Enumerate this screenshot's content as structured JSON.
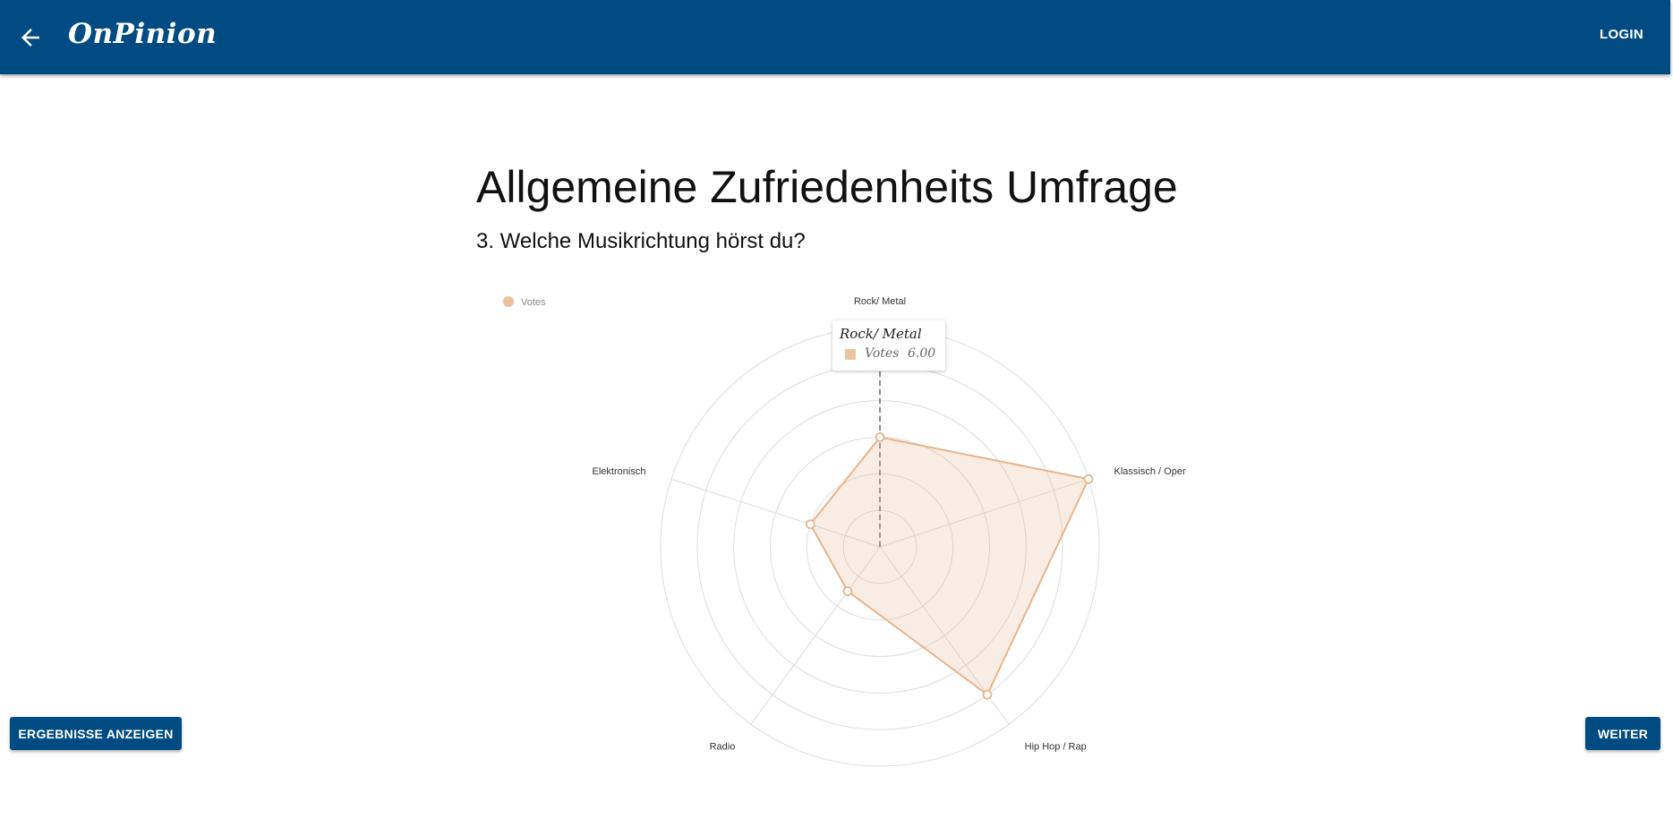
{
  "header": {
    "brand": "OnPinion",
    "login_label": "LOGIN",
    "background_color": "#004b82",
    "back_icon": "arrow-left-icon"
  },
  "survey": {
    "title": "Allgemeine Zufriedenheits Umfrage",
    "question": "3. Welche Musikrichtung hörst du?"
  },
  "chart_data": {
    "type": "radar",
    "categories": [
      "Rock/ Metal",
      "Klassisch / Oper",
      "Hip Hop / Rap",
      "Radio",
      "Elektronisch"
    ],
    "series": [
      {
        "name": "Votes",
        "values": [
          6,
          12,
          10,
          3,
          4
        ],
        "color": "#e8b48a"
      }
    ],
    "range": [
      0,
      12
    ],
    "ring_step": 2,
    "legend_position": "top-left",
    "tooltip": {
      "category": "Rock/ Metal",
      "series": "Votes",
      "value": "6.00"
    }
  },
  "actions": {
    "results_label": "ERGEBNISSE ANZEIGEN",
    "next_label": "WEITER"
  }
}
